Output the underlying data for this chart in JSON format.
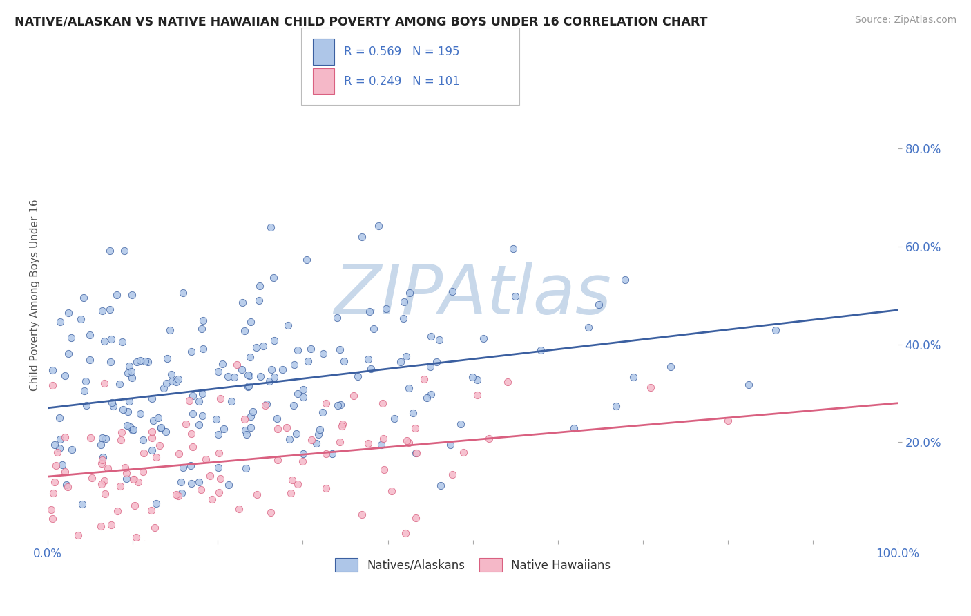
{
  "title": "NATIVE/ALASKAN VS NATIVE HAWAIIAN CHILD POVERTY AMONG BOYS UNDER 16 CORRELATION CHART",
  "source": "Source: ZipAtlas.com",
  "ylabel": "Child Poverty Among Boys Under 16",
  "blue_R": 0.569,
  "blue_N": 195,
  "pink_R": 0.249,
  "pink_N": 101,
  "blue_color": "#aec6e8",
  "pink_color": "#f5b8c8",
  "blue_line_color": "#3b5fa0",
  "pink_line_color": "#d96080",
  "title_color": "#222222",
  "label_color": "#4472c4",
  "watermark_text": "ZIPAtlas",
  "watermark_color": "#c8d8ea",
  "xlim": [
    0,
    1
  ],
  "ylim": [
    0,
    1
  ],
  "x_ticks": [
    0.0,
    0.1,
    0.2,
    0.3,
    0.4,
    0.5,
    0.6,
    0.7,
    0.8,
    0.9,
    1.0
  ],
  "y_ticks_right": [
    0.2,
    0.4,
    0.6,
    0.8
  ],
  "y_tick_labels_right": [
    "20.0%",
    "40.0%",
    "60.0%",
    "80.0%"
  ],
  "seed_blue": 42,
  "seed_pink": 7,
  "background_color": "#ffffff",
  "grid_color": "#dddddd",
  "blue_line_intercept": 0.27,
  "blue_line_slope": 0.2,
  "pink_line_intercept": 0.13,
  "pink_line_slope": 0.15
}
